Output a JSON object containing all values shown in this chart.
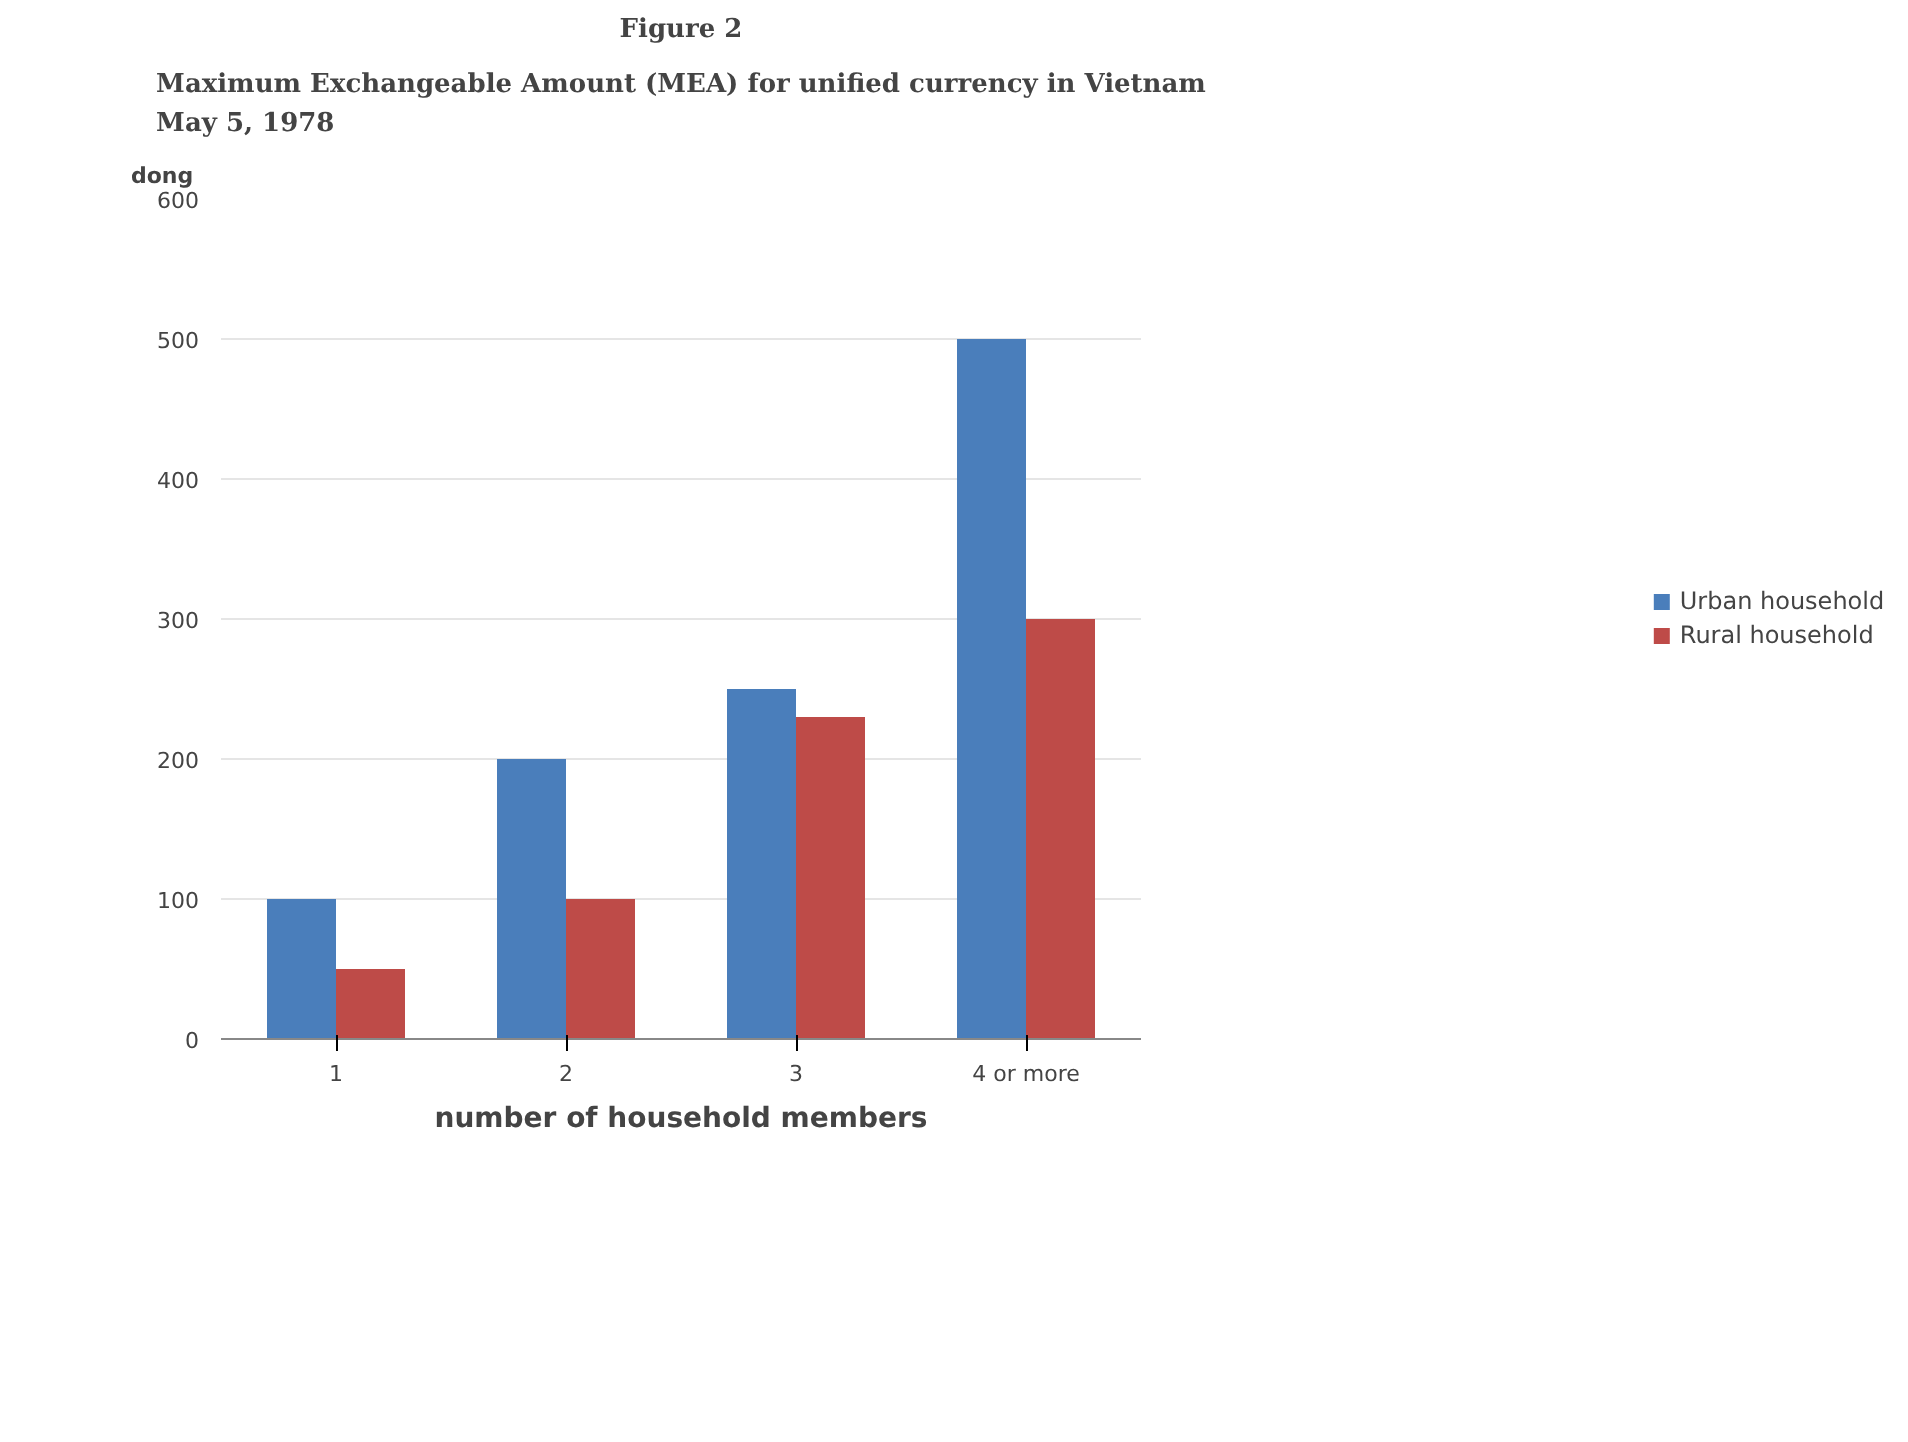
{
  "chart_data": {
    "type": "bar",
    "title": "Figure 2",
    "subtitle": "Maximum Exchangeable Amount (MEA) for unified currency in Vietnam\nMay 5, 1978",
    "xlabel": "number of household members",
    "ylabel": "dong",
    "categories": [
      "1",
      "2",
      "3",
      "4 or more"
    ],
    "series": [
      {
        "name": "Urban household",
        "color": "#4a7ebb",
        "values": [
          100,
          200,
          250,
          500
        ]
      },
      {
        "name": "Rural household",
        "color": "#be4b48",
        "values": [
          50,
          100,
          230,
          300
        ]
      }
    ],
    "ylim": [
      0,
      600
    ],
    "yticks": [
      0,
      100,
      200,
      300,
      400,
      500,
      600
    ],
    "grid": "y",
    "legend": "right"
  }
}
